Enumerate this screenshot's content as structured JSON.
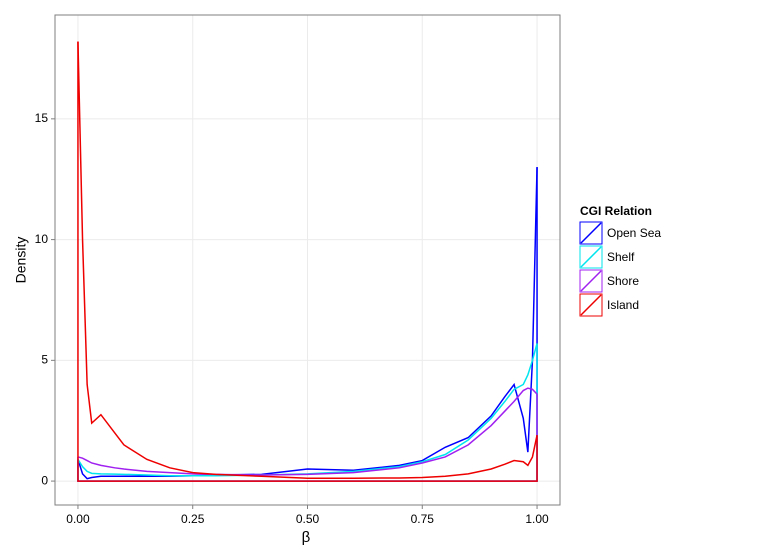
{
  "chart_data": {
    "type": "density",
    "x_label": "β",
    "y_label": "Density",
    "legend_title": "CGI Relation",
    "legend_position": "right",
    "grid": true,
    "xlim": [
      -0.05,
      1.05
    ],
    "ylim": [
      -0.99,
      19.3
    ],
    "xticks": [
      {
        "value": 0,
        "label": "0.00"
      },
      {
        "value": 0.25,
        "label": "0.25"
      },
      {
        "value": 0.5,
        "label": "0.50"
      },
      {
        "value": 0.75,
        "label": "0.75"
      },
      {
        "value": 1,
        "label": "1.00"
      }
    ],
    "yticks": [
      0,
      5,
      10,
      15
    ],
    "x": [
      0,
      0.01,
      0.02,
      0.03,
      0.05,
      0.08,
      0.1,
      0.15,
      0.2,
      0.25,
      0.3,
      0.4,
      0.5,
      0.6,
      0.7,
      0.75,
      0.8,
      0.85,
      0.9,
      0.93,
      0.95,
      0.97,
      0.98,
      0.99,
      1.0
    ],
    "series": [
      {
        "name": "Open Sea",
        "color": "#0000ff",
        "values": [
          0.9,
          0.3,
          0.1,
          0.15,
          0.2,
          0.2,
          0.2,
          0.2,
          0.2,
          0.22,
          0.25,
          0.28,
          0.5,
          0.45,
          0.65,
          0.85,
          1.4,
          1.8,
          2.7,
          3.5,
          4.0,
          2.6,
          1.2,
          5.0,
          13.0
        ]
      },
      {
        "name": "Shelf",
        "color": "#00e5ee",
        "values": [
          0.9,
          0.6,
          0.4,
          0.32,
          0.3,
          0.29,
          0.28,
          0.25,
          0.22,
          0.22,
          0.22,
          0.25,
          0.3,
          0.4,
          0.6,
          0.8,
          1.1,
          1.7,
          2.6,
          3.3,
          3.8,
          4.0,
          4.4,
          5.0,
          5.7
        ]
      },
      {
        "name": "Shore",
        "color": "#a020f0",
        "values": [
          1.0,
          0.95,
          0.85,
          0.75,
          0.65,
          0.55,
          0.5,
          0.4,
          0.35,
          0.3,
          0.28,
          0.25,
          0.28,
          0.35,
          0.55,
          0.75,
          1.0,
          1.5,
          2.3,
          2.9,
          3.3,
          3.75,
          3.85,
          3.8,
          3.6
        ]
      },
      {
        "name": "Island",
        "color": "#ee0000",
        "values": [
          18.2,
          10,
          4,
          2.4,
          2.75,
          2.0,
          1.5,
          0.9,
          0.55,
          0.35,
          0.28,
          0.2,
          0.12,
          0.12,
          0.13,
          0.15,
          0.2,
          0.3,
          0.5,
          0.7,
          0.85,
          0.8,
          0.65,
          1.0,
          1.9
        ]
      }
    ]
  }
}
